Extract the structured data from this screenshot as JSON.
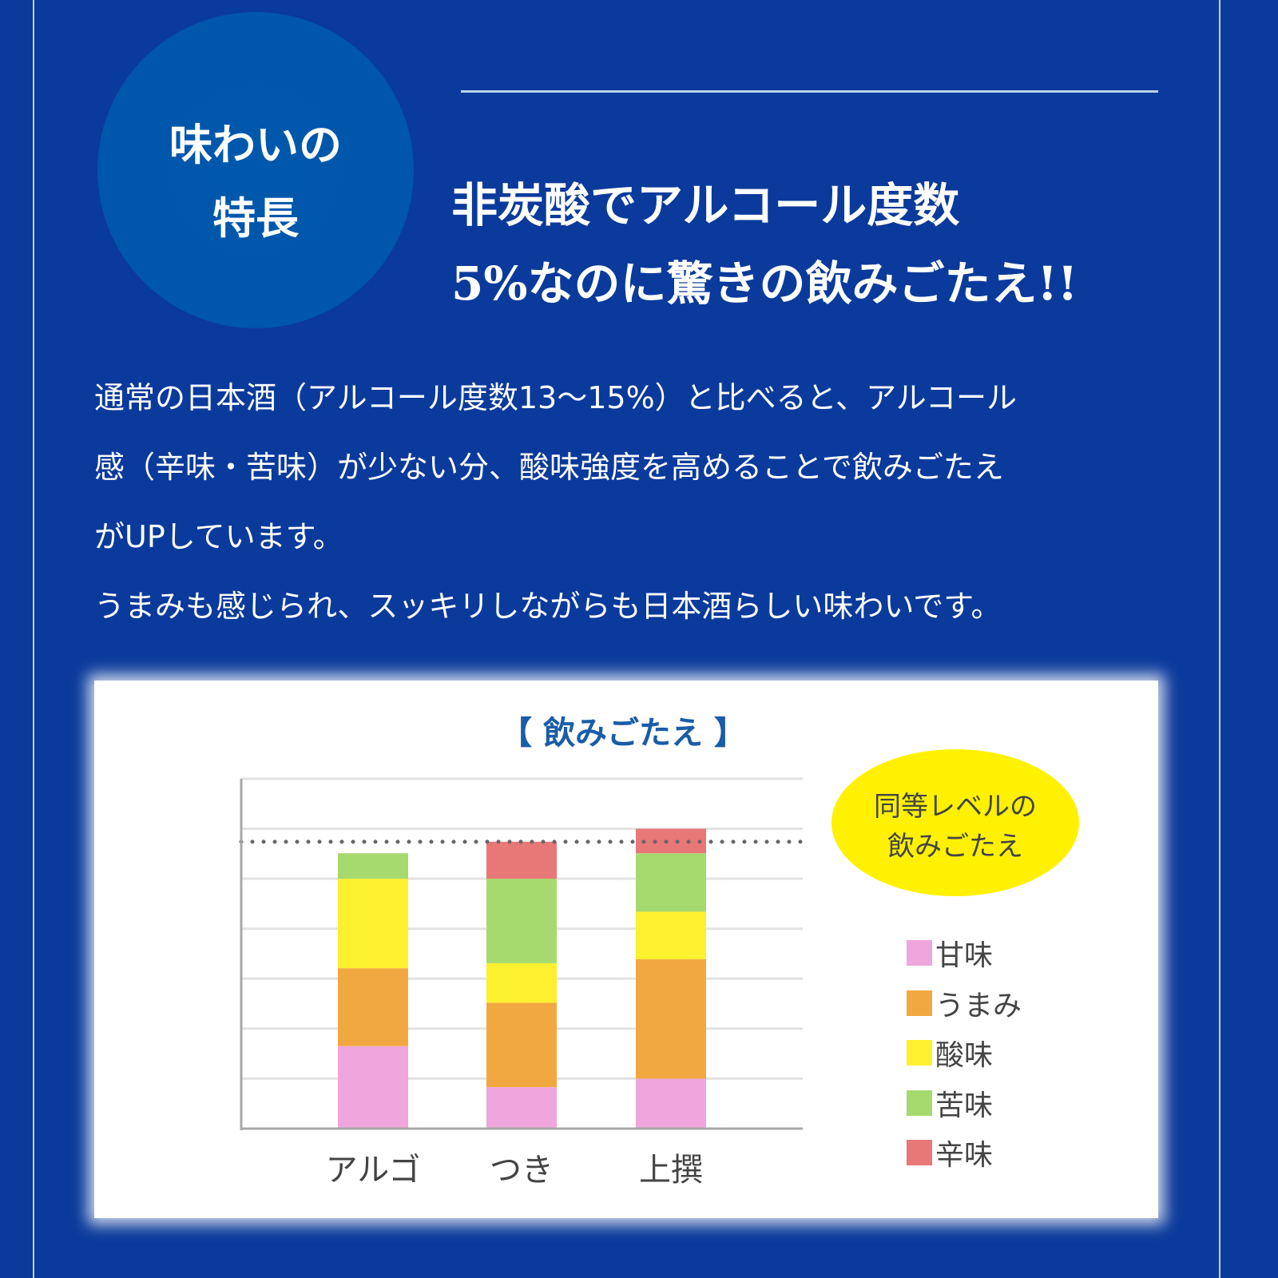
{
  "badge_circle": {
    "lines": [
      "味わいの",
      "特長"
    ]
  },
  "headline": {
    "lines": [
      "非炭酸でアルコール度数",
      "5%なのに驚きの飲みごたえ!!"
    ]
  },
  "body": {
    "lines": [
      "通常の日本酒（アルコール度数13〜15%）と比べると、アルコール",
      "感（辛味・苦味）が少ない分、酸味強度を高めることで飲みごたえ",
      "がUPしています。",
      "うまみも感じられ、スッキリしながらも日本酒らしい味わいです。"
    ]
  },
  "colors": {
    "background": "#0a3a9b",
    "title": "#1a5ca8",
    "callout": "#fff100"
  },
  "chart_data": {
    "type": "bar",
    "stacked": true,
    "title": "【 飲みごたえ 】",
    "categories": [
      "アルゴ",
      "つき",
      "上撰"
    ],
    "series": [
      {
        "name": "甘味",
        "color": "#eea6dc",
        "values": [
          1.65,
          0.83,
          1.0
        ]
      },
      {
        "name": "うまみ",
        "color": "#f2a840",
        "values": [
          1.56,
          1.69,
          2.39
        ]
      },
      {
        "name": "酸味",
        "color": "#fdf02e",
        "values": [
          1.79,
          0.79,
          0.95
        ]
      },
      {
        "name": "苦味",
        "color": "#a6da6e",
        "values": [
          0.51,
          1.69,
          1.17
        ]
      },
      {
        "name": "辛味",
        "color": "#e87777",
        "values": [
          0,
          0.74,
          0.49
        ]
      }
    ],
    "reference_line": 5.74,
    "ylim": [
      0,
      7
    ],
    "grid": true,
    "y_tick_labels": false,
    "legend_position": "right",
    "annotation": {
      "lines": [
        "同等レベルの",
        "飲みごたえ"
      ]
    }
  }
}
